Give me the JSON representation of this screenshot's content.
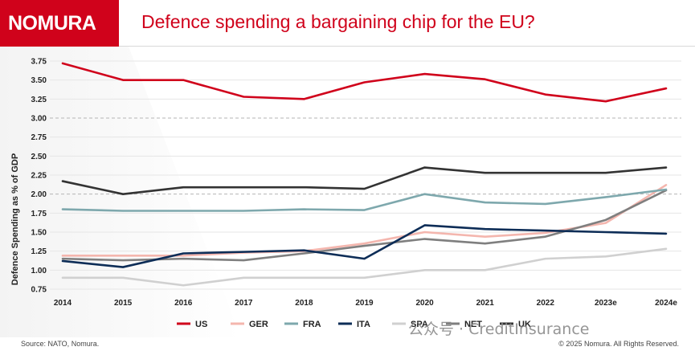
{
  "header": {
    "logo_text": "NOMURA",
    "title": "Defence spending a bargaining chip for the EU?"
  },
  "footer": {
    "source": "Source: NATO, Nomura.",
    "copyright": "© 2025 Nomura. All Rights Reserved."
  },
  "watermark": "公众号 · CreditInsurance",
  "chart_data": {
    "type": "line",
    "title": "",
    "xlabel": "",
    "ylabel": "Defence Spending as % of GDP",
    "categories": [
      "2014",
      "2015",
      "2016",
      "2017",
      "2018",
      "2019",
      "2020",
      "2021",
      "2022",
      "2023e",
      "2024e"
    ],
    "ylim": [
      0.75,
      3.75
    ],
    "yticks": [
      "0.75",
      "1.00",
      "1.25",
      "1.50",
      "1.75",
      "2.00",
      "2.25",
      "2.50",
      "2.75",
      "3.00",
      "3.25",
      "3.50",
      "3.75"
    ],
    "reference_lines": [
      2.0,
      3.0
    ],
    "legend_position": "bottom",
    "series": [
      {
        "name": "US",
        "color": "#d0021b",
        "values": [
          3.72,
          3.5,
          3.5,
          3.28,
          3.25,
          3.47,
          3.58,
          3.51,
          3.31,
          3.22,
          3.39
        ]
      },
      {
        "name": "GER",
        "color": "#f4b6ae",
        "values": [
          1.19,
          1.19,
          1.19,
          1.23,
          1.25,
          1.35,
          1.5,
          1.44,
          1.49,
          1.62,
          2.12
        ]
      },
      {
        "name": "FRA",
        "color": "#7ea8ad",
        "values": [
          1.8,
          1.78,
          1.78,
          1.78,
          1.8,
          1.79,
          2.0,
          1.89,
          1.87,
          1.96,
          2.06
        ]
      },
      {
        "name": "ITA",
        "color": "#0d2d57",
        "values": [
          1.12,
          1.04,
          1.22,
          1.24,
          1.26,
          1.15,
          1.59,
          1.54,
          1.52,
          1.5,
          1.48
        ]
      },
      {
        "name": "SPA",
        "color": "#d0d0d0",
        "values": [
          0.9,
          0.9,
          0.8,
          0.9,
          0.9,
          0.9,
          1.0,
          1.0,
          1.15,
          1.18,
          1.28
        ]
      },
      {
        "name": "NET",
        "color": "#7f7f7f",
        "values": [
          1.15,
          1.13,
          1.15,
          1.13,
          1.22,
          1.32,
          1.41,
          1.35,
          1.44,
          1.66,
          2.05
        ]
      },
      {
        "name": "UK",
        "color": "#333333",
        "values": [
          2.17,
          2.0,
          2.09,
          2.09,
          2.09,
          2.07,
          2.35,
          2.28,
          2.28,
          2.28,
          2.35
        ]
      }
    ]
  }
}
